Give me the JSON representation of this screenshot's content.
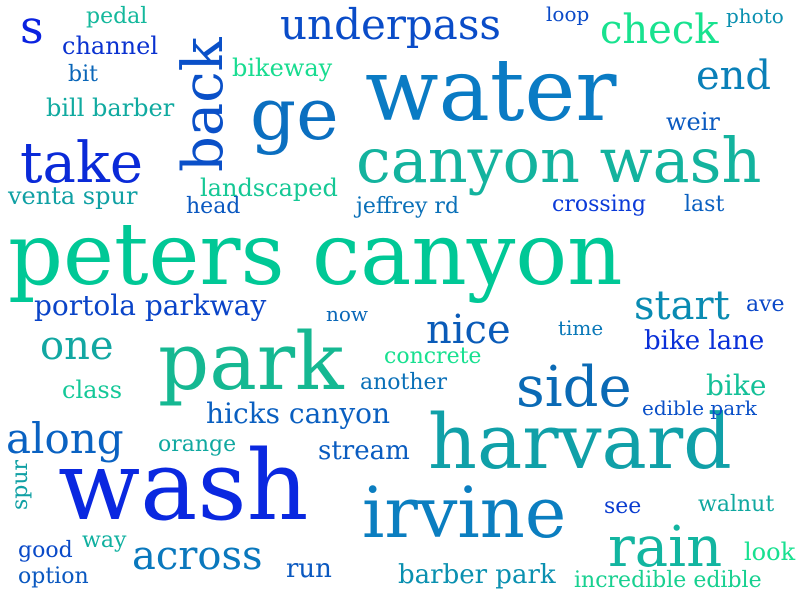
{
  "words": [
    {
      "text": "peters canyon",
      "color": "#00c896"
    },
    {
      "text": "water",
      "color": "#0a7bc4"
    },
    {
      "text": "canyon wash",
      "color": "#13b39e"
    },
    {
      "text": "harvard",
      "color": "#10a0a8"
    },
    {
      "text": "wash",
      "color": "#0a28e0"
    },
    {
      "text": "park",
      "color": "#15b892"
    },
    {
      "text": "irvine",
      "color": "#0b7ec0"
    },
    {
      "text": "ge",
      "color": "#0b6fc0"
    },
    {
      "text": "back",
      "color": "#0a50c8"
    },
    {
      "text": "take",
      "color": "#0a2ad8"
    },
    {
      "text": "side",
      "color": "#0a6ab5"
    },
    {
      "text": "rain",
      "color": "#12b5a0"
    },
    {
      "text": "underpass",
      "color": "#0a4cc8"
    },
    {
      "text": "along",
      "color": "#0a62c2"
    },
    {
      "text": "across",
      "color": "#0a78bd"
    },
    {
      "text": "nice",
      "color": "#0a5bb8"
    },
    {
      "text": "one",
      "color": "#12a7a2"
    },
    {
      "text": "check",
      "color": "#18e28f"
    },
    {
      "text": "end",
      "color": "#0a80b8"
    },
    {
      "text": "start",
      "color": "#0a8bb2"
    },
    {
      "text": "s",
      "color": "#0a22e0"
    },
    {
      "text": "portola parkway",
      "color": "#0a44c8"
    },
    {
      "text": "hicks canyon",
      "color": "#0a5fc0"
    },
    {
      "text": "channel",
      "color": "#0a32d0"
    },
    {
      "text": "bill barber",
      "color": "#10aaa0"
    },
    {
      "text": "venta spur",
      "color": "#10a0a4"
    },
    {
      "text": "landscaped",
      "color": "#15c895"
    },
    {
      "text": "bikeway",
      "color": "#18dc90"
    },
    {
      "text": "pedal",
      "color": "#14b89c"
    },
    {
      "text": "bit",
      "color": "#0a66b8"
    },
    {
      "text": "loop",
      "color": "#0a4ac8"
    },
    {
      "text": "photo",
      "color": "#0a90b0"
    },
    {
      "text": "weir",
      "color": "#0a5ac0"
    },
    {
      "text": "head",
      "color": "#0a58c0"
    },
    {
      "text": "jeffrey rd",
      "color": "#0a70b8"
    },
    {
      "text": "crossing",
      "color": "#0a3ad8"
    },
    {
      "text": "last",
      "color": "#0a60c0"
    },
    {
      "text": "ave",
      "color": "#0a48c8"
    },
    {
      "text": "bike lane",
      "color": "#0a30d8"
    },
    {
      "text": "now",
      "color": "#0a68b8"
    },
    {
      "text": "time",
      "color": "#0a78b8"
    },
    {
      "text": "concrete",
      "color": "#18e090"
    },
    {
      "text": "another",
      "color": "#0a70b8"
    },
    {
      "text": "class",
      "color": "#14c898"
    },
    {
      "text": "bike",
      "color": "#14c098"
    },
    {
      "text": "edible park",
      "color": "#0a50c8"
    },
    {
      "text": "orange",
      "color": "#10a8a0"
    },
    {
      "text": "stream",
      "color": "#0a5cc0"
    },
    {
      "text": "spur",
      "color": "#10a0a4"
    },
    {
      "text": "see",
      "color": "#0a3cd0"
    },
    {
      "text": "walnut",
      "color": "#10a8a0"
    },
    {
      "text": "good",
      "color": "#0a4ac8"
    },
    {
      "text": "way",
      "color": "#10b0a0"
    },
    {
      "text": "option",
      "color": "#0a58c0"
    },
    {
      "text": "run",
      "color": "#0a58c0"
    },
    {
      "text": "barber park",
      "color": "#0a90b0"
    },
    {
      "text": "incredible edible",
      "color": "#18d090"
    },
    {
      "text": "look",
      "color": "#18e090"
    }
  ]
}
